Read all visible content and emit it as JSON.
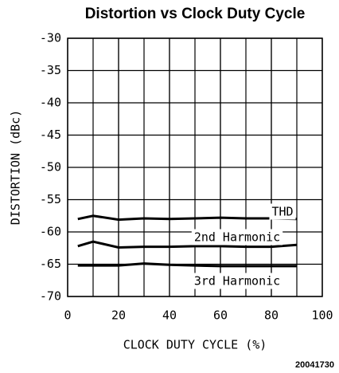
{
  "chart_data": {
    "type": "line",
    "title": "Distortion vs Clock Duty Cycle",
    "x_label": "CLOCK DUTY CYCLE (%)",
    "y_label": "DISTORTION (dBc)",
    "figure_code": "20041730",
    "x": [
      4,
      10,
      20,
      30,
      40,
      50,
      60,
      70,
      80,
      90
    ],
    "series": [
      {
        "name": "THD",
        "color": "#000000",
        "values": [
          -58,
          -57.5,
          -58.1,
          -57.9,
          -58,
          -57.9,
          -57.8,
          -57.9,
          -57.9,
          -58
        ]
      },
      {
        "name": "2nd Harmonic",
        "color": "#000000",
        "values": [
          -62.2,
          -61.5,
          -62.4,
          -62.3,
          -62.3,
          -62.2,
          -62.2,
          -62.3,
          -62.3,
          -62
        ]
      },
      {
        "name": "3rd Harmonic",
        "color": "#000000",
        "values": [
          -65.2,
          -65.2,
          -65.2,
          -64.9,
          -65.1,
          -65.2,
          -65.3,
          -65.3,
          -65.3,
          -65.3
        ]
      }
    ],
    "xlim": [
      0,
      100
    ],
    "xticks": [
      0,
      20,
      40,
      60,
      80,
      100
    ],
    "ylim": [
      -70,
      -30
    ],
    "yticks": [
      -30,
      -35,
      -40,
      -45,
      -50,
      -55,
      -60,
      -65,
      -70
    ],
    "grid_x": [
      10,
      20,
      30,
      40,
      50,
      60,
      70,
      80,
      90
    ],
    "grid": true
  }
}
